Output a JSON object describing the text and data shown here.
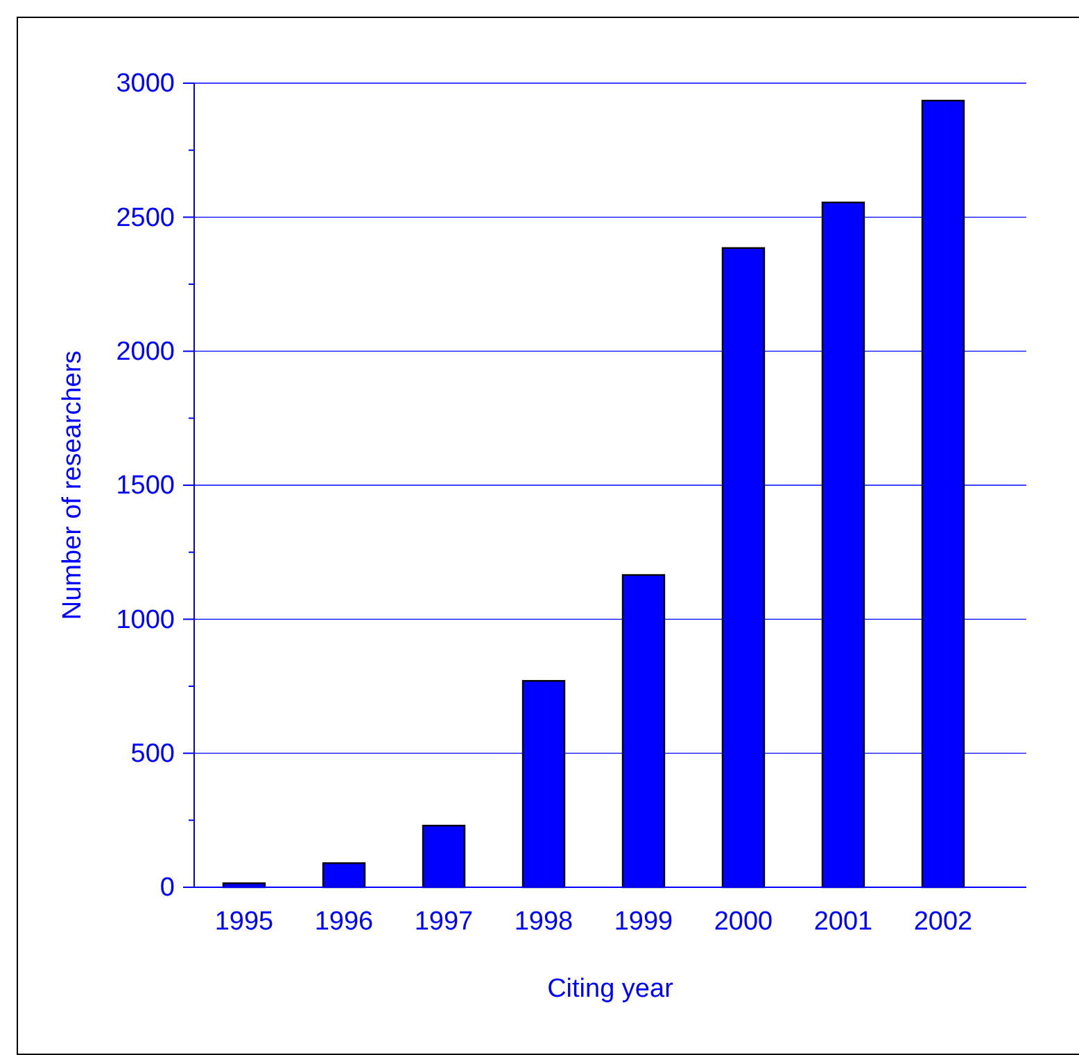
{
  "chart_data": {
    "type": "bar",
    "xlabel": "Citing year",
    "ylabel": "Number of researchers",
    "categories": [
      "1995",
      "1996",
      "1997",
      "1998",
      "1999",
      "2000",
      "2001",
      "2002"
    ],
    "values": [
      15,
      90,
      230,
      770,
      1165,
      2385,
      2555,
      2935
    ],
    "color": "#0000ff",
    "ylim": [
      0,
      3000
    ],
    "yticks": [
      0,
      {
        "value": 250,
        "label": null
      },
      500,
      {
        "value": 750,
        "label": null
      },
      1000,
      {
        "value": 1250,
        "label": null
      },
      1500,
      {
        "value": 1750,
        "label": null
      },
      2000,
      {
        "value": 2250,
        "label": null
      },
      2500,
      {
        "value": 2750,
        "label": null
      },
      3000
    ],
    "grid": "y"
  }
}
